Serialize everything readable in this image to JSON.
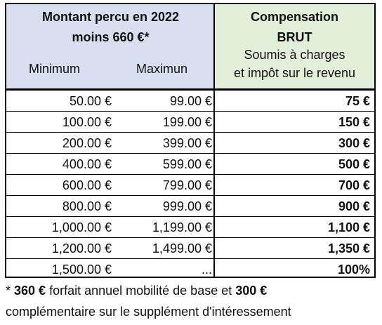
{
  "header": {
    "left_line1": "Montant percu en 2022",
    "left_line2": "moins 660 €*",
    "min_label": "Minimum",
    "max_label": "Maximun",
    "right_line1": "Compensation",
    "right_line2": "BRUT",
    "right_line3": "Soumis à charges",
    "right_line4": "et impôt sur le revenu"
  },
  "colors": {
    "left_header_bg": "#d9dff1",
    "right_header_bg": "#e2efd9"
  },
  "rows": [
    {
      "min": "50.00 €",
      "max": "99.00 €",
      "comp": "75 €"
    },
    {
      "min": "100.00 €",
      "max": "199.00 €",
      "comp": "150 €"
    },
    {
      "min": "200.00 €",
      "max": "399.00 €",
      "comp": "300 €"
    },
    {
      "min": "400.00 €",
      "max": "599.00 €",
      "comp": "500 €"
    },
    {
      "min": "600.00 €",
      "max": "799.00 €",
      "comp": "700 €"
    },
    {
      "min": "800.00 €",
      "max": "999.00 €",
      "comp": "900 €"
    },
    {
      "min": "1,000.00 €",
      "max": "1,199.00 €",
      "comp": "1,100 €"
    },
    {
      "min": "1,200.00 €",
      "max": "1,499.00 €",
      "comp": "1,350 €"
    },
    {
      "min": "1,500.00 €",
      "max": "...",
      "comp": "100%"
    }
  ],
  "footnote": {
    "prefix": "* ",
    "amount1": "360 €",
    "middle": " forfait annuel mobilité de base et ",
    "amount2": "300 €",
    "line2": "complémentaire sur le supplément d'intéressement"
  }
}
